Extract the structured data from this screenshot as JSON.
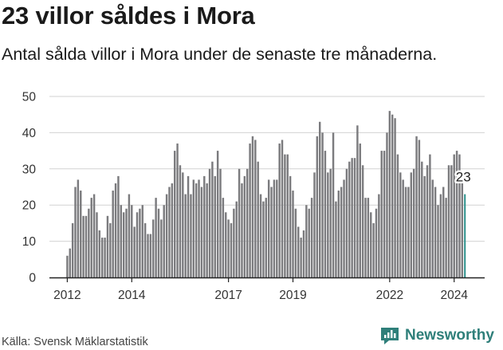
{
  "header": {
    "title": "23 villor såldes i Mora",
    "subtitle": "Antal sålda villor i Mora under de senaste tre månaderna."
  },
  "footer": {
    "source": "Källa: Svensk Mäklarstatistik",
    "brand": "Newsworthy"
  },
  "colors": {
    "bar": "#7b7b7e",
    "highlight": "#2a8f8a",
    "grid": "#d2d2d2",
    "brand": "#2f7f7a"
  },
  "chart_data": {
    "type": "bar",
    "title": "23 villor såldes i Mora",
    "subtitle": "Antal sålda villor i Mora under de senaste tre månaderna.",
    "xlabel": "",
    "ylabel": "",
    "ylim": [
      0,
      50
    ],
    "yticks": [
      0,
      10,
      20,
      30,
      40,
      50
    ],
    "xticks": [
      {
        "label": "2012",
        "index": 0
      },
      {
        "label": "2014",
        "index": 24
      },
      {
        "label": "2017",
        "index": 60
      },
      {
        "label": "2019",
        "index": 84
      },
      {
        "label": "2022",
        "index": 120
      },
      {
        "label": "2024",
        "index": 144
      }
    ],
    "start_period": "2012-01",
    "frequency": "monthly",
    "grid": true,
    "highlight_label": "23",
    "values": [
      6,
      8,
      15,
      25,
      27,
      24,
      17,
      17,
      19,
      22,
      23,
      18,
      13,
      11,
      11,
      17,
      15,
      24,
      26,
      28,
      20,
      18,
      19,
      23,
      20,
      14,
      18,
      19,
      20,
      15,
      12,
      12,
      16,
      22,
      19,
      16,
      20,
      23,
      25,
      26,
      35,
      37,
      31,
      29,
      23,
      28,
      23,
      27,
      26,
      27,
      25,
      28,
      26,
      30,
      32,
      28,
      35,
      30,
      22,
      18,
      16,
      15,
      19,
      21,
      30,
      26,
      28,
      30,
      37,
      39,
      38,
      32,
      23,
      21,
      22,
      27,
      25,
      27,
      27,
      37,
      38,
      34,
      34,
      28,
      24,
      19,
      14,
      11,
      13,
      20,
      19,
      22,
      29,
      39,
      43,
      40,
      35,
      29,
      30,
      40,
      21,
      24,
      25,
      27,
      30,
      32,
      33,
      33,
      42,
      37,
      31,
      22,
      22,
      18,
      15,
      19,
      23,
      35,
      35,
      40,
      46,
      45,
      44,
      34,
      29,
      27,
      25,
      25,
      29,
      30,
      39,
      38,
      32,
      28,
      31,
      34,
      27,
      25,
      20,
      23,
      25,
      22,
      31,
      31,
      34,
      35,
      34,
      26,
      23
    ]
  }
}
